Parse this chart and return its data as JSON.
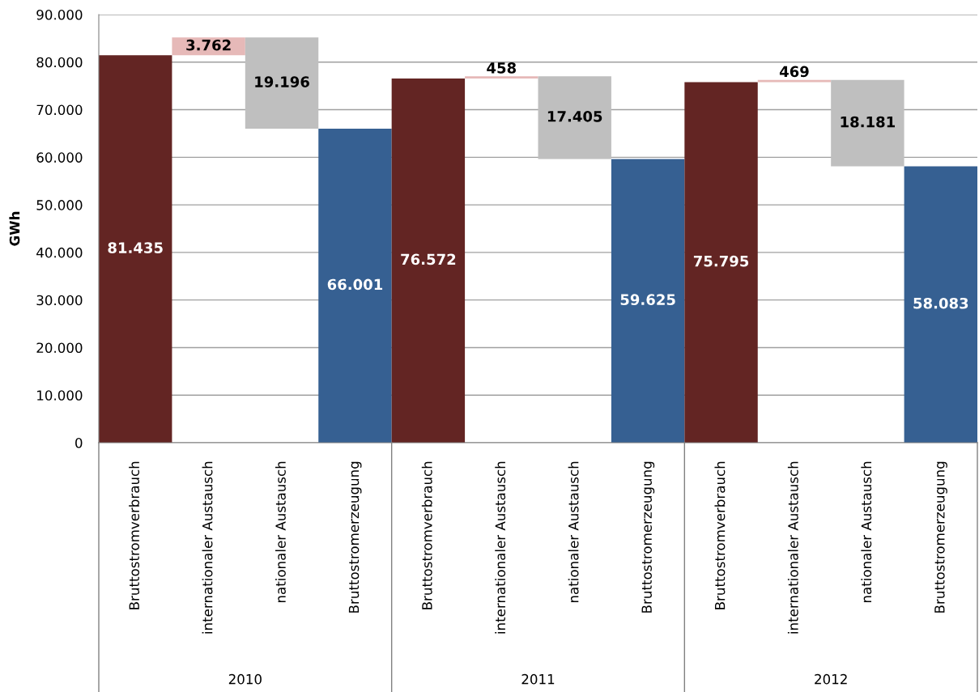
{
  "chart_data": {
    "type": "bar",
    "ylabel": "GWh",
    "categories": [
      "Bruttostromverbrauch",
      "internationaler Austausch",
      "nationaler Austausch",
      "Bruttostromerzeugung",
      "Bruttostromverbrauch",
      "internationaler Austausch",
      "nationaler Austausch",
      "Bruttostromerzeugung",
      "Bruttostromverbrauch",
      "internationaler Austausch",
      "nationaler Austausch",
      "Bruttostromerzeugung"
    ],
    "values": [
      81435,
      3762,
      19196,
      66001,
      76572,
      458,
      17405,
      59625,
      75795,
      469,
      18181,
      58083
    ],
    "base": [
      0,
      81435,
      66001,
      0,
      0,
      76572,
      59625,
      0,
      0,
      75795,
      58083,
      0
    ],
    "value_labels": [
      "81.435",
      "3.762",
      "19.196",
      "66.001",
      "76.572",
      "458",
      "17.405",
      "59.625",
      "75.795",
      "469",
      "18.181",
      "58.083"
    ],
    "colors": [
      "#632523",
      "#e6b9b8",
      "#bfbfbf",
      "#366092",
      "#632523",
      "#e6b9b8",
      "#bfbfbf",
      "#366092",
      "#632523",
      "#e6b9b8",
      "#bfbfbf",
      "#366092"
    ],
    "annotations": [
      "2010",
      "2011",
      "2012"
    ],
    "ylim": [
      0,
      90000
    ],
    "yticks": [
      0,
      {
        "value": 10000,
        "label": "10.000"
      },
      {
        "value": 20000,
        "label": "20.000"
      },
      {
        "value": 30000,
        "label": "30.000"
      },
      {
        "value": 40000,
        "label": "40.000"
      },
      {
        "value": 50000,
        "label": "50.000"
      },
      {
        "value": 60000,
        "label": "60.000"
      },
      {
        "value": 70000,
        "label": "70.000"
      },
      {
        "value": 80000,
        "label": "80.000"
      },
      {
        "value": 90000,
        "label": "90.000"
      }
    ],
    "grid": "y"
  }
}
